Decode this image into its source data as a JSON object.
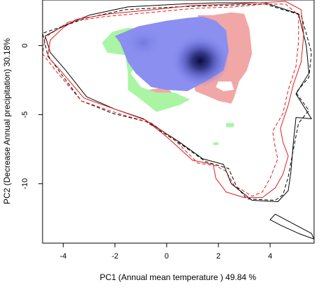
{
  "chart_data": {
    "type": "niche-overlap-contour",
    "title": "",
    "xlabel": "PC1 (Annual mean temperature ) 49.84 %",
    "ylabel": "PC2 (Decrease Annual precipitation) 30.18%",
    "xlim": [
      -4.8,
      5.7
    ],
    "ylim": [
      -14.3,
      3.3
    ],
    "x_ticks": [
      -4,
      -2,
      0,
      2,
      4
    ],
    "y_ticks": [
      0,
      -5,
      -10
    ],
    "x_tick_labels": [
      "-4",
      "-2",
      "0",
      "2",
      "4"
    ],
    "y_tick_labels": [
      "0",
      "-5",
      "-10"
    ],
    "colors": {
      "overlap_blue": "#8a8ff0",
      "species1_only_green": "#a9f5a3",
      "species2_only_red": "#f2a7a7",
      "density_peak": "#0b0b3a",
      "contour_species1": "#000000",
      "contour_species2": "#e31a1c"
    },
    "density_peak": [
      1.3,
      -1.1
    ],
    "series": [
      {
        "name": "",
        "role": "species1 environment contour (solid)",
        "color": "#000000",
        "dash": "solid",
        "points": [
          [
            -3.0,
            2.2
          ],
          [
            -1.5,
            2.8
          ],
          [
            0.5,
            3.0
          ],
          [
            2.0,
            3.1
          ],
          [
            3.8,
            3.1
          ],
          [
            5.1,
            2.3
          ],
          [
            5.4,
            0.0
          ],
          [
            5.5,
            -2.0
          ],
          [
            5.0,
            -3.5
          ],
          [
            5.6,
            -5.3
          ],
          [
            5.0,
            -5.2
          ],
          [
            4.9,
            -7.0
          ],
          [
            4.8,
            -9.2
          ],
          [
            4.7,
            -10.5
          ],
          [
            4.3,
            -11.3
          ],
          [
            3.3,
            -11.2
          ],
          [
            2.5,
            -10.0
          ],
          [
            2.2,
            -8.6
          ],
          [
            1.4,
            -8.2
          ],
          [
            0.5,
            -7.0
          ],
          [
            -0.9,
            -5.3
          ],
          [
            -2.0,
            -4.6
          ],
          [
            -3.1,
            -3.7
          ],
          [
            -3.9,
            -1.8
          ],
          [
            -4.5,
            -0.5
          ],
          [
            -4.7,
            0.7
          ],
          [
            -3.9,
            1.5
          ],
          [
            -3.0,
            2.2
          ]
        ]
      },
      {
        "name": "",
        "role": "species1 environment contour (dashed)",
        "color": "#000000",
        "dash": "dashed",
        "points": [
          [
            -3.1,
            2.0
          ],
          [
            -1.6,
            2.6
          ],
          [
            0.4,
            2.8
          ],
          [
            2.0,
            2.9
          ],
          [
            3.8,
            3.0
          ],
          [
            5.2,
            2.2
          ],
          [
            5.6,
            -0.5
          ],
          [
            5.5,
            -2.3
          ],
          [
            5.0,
            -3.4
          ],
          [
            5.5,
            -4.7
          ],
          [
            5.1,
            -5.6
          ],
          [
            4.9,
            -7.5
          ],
          [
            4.7,
            -9.5
          ],
          [
            4.5,
            -10.8
          ],
          [
            4.2,
            -11.2
          ],
          [
            3.1,
            -11.1
          ],
          [
            2.7,
            -10.2
          ],
          [
            2.4,
            -8.9
          ],
          [
            1.5,
            -8.4
          ],
          [
            0.6,
            -7.2
          ],
          [
            -0.8,
            -5.5
          ],
          [
            -2.1,
            -4.9
          ],
          [
            -3.3,
            -4.0
          ],
          [
            -4.1,
            -2.0
          ],
          [
            -4.6,
            -0.7
          ],
          [
            -4.8,
            0.9
          ],
          [
            -4.0,
            1.4
          ],
          [
            -3.1,
            2.0
          ]
        ]
      },
      {
        "name": "",
        "role": "species1 environment contour (solid, lower lobe)",
        "color": "#000000",
        "dash": "solid",
        "points": [
          [
            4.2,
            -12.2
          ],
          [
            4.8,
            -12.8
          ],
          [
            5.6,
            -13.6
          ],
          [
            5.7,
            -14.0
          ],
          [
            5.1,
            -13.6
          ],
          [
            4.4,
            -13.0
          ],
          [
            4.0,
            -12.6
          ],
          [
            4.2,
            -12.2
          ]
        ]
      },
      {
        "name": "",
        "role": "species2 environment contour (solid)",
        "color": "#e31a1c",
        "dash": "solid",
        "points": [
          [
            -3.5,
            1.9
          ],
          [
            -2.2,
            2.3
          ],
          [
            -0.5,
            2.6
          ],
          [
            1.0,
            2.9
          ],
          [
            2.5,
            3.0
          ],
          [
            3.6,
            3.1
          ],
          [
            4.6,
            3.2
          ],
          [
            5.2,
            2.6
          ],
          [
            5.3,
            0.8
          ],
          [
            5.2,
            -1.2
          ],
          [
            4.9,
            -2.8
          ],
          [
            4.7,
            -4.3
          ],
          [
            4.4,
            -6.0
          ],
          [
            4.5,
            -7.0
          ],
          [
            4.7,
            -8.0
          ],
          [
            4.5,
            -9.3
          ],
          [
            4.2,
            -10.3
          ],
          [
            3.7,
            -11.0
          ],
          [
            3.0,
            -11.0
          ],
          [
            2.3,
            -10.6
          ],
          [
            1.9,
            -9.6
          ],
          [
            1.8,
            -8.6
          ],
          [
            1.0,
            -8.3
          ],
          [
            0.0,
            -6.6
          ],
          [
            -0.8,
            -5.4
          ],
          [
            -2.0,
            -4.6
          ],
          [
            -3.2,
            -3.8
          ],
          [
            -4.2,
            -1.6
          ],
          [
            -4.6,
            -0.8
          ],
          [
            -4.5,
            0.4
          ],
          [
            -4.0,
            1.3
          ],
          [
            -3.5,
            1.9
          ]
        ]
      },
      {
        "name": "",
        "role": "species2 environment contour (dashed)",
        "color": "#e31a1c",
        "dash": "dashed",
        "points": [
          [
            -3.8,
            1.7
          ],
          [
            -2.4,
            2.1
          ],
          [
            -0.6,
            2.4
          ],
          [
            1.1,
            2.7
          ],
          [
            2.6,
            2.8
          ],
          [
            3.8,
            3.0
          ],
          [
            4.6,
            3.0
          ],
          [
            5.1,
            2.2
          ],
          [
            5.1,
            0.3
          ],
          [
            5.0,
            -1.5
          ],
          [
            4.7,
            -3.2
          ],
          [
            4.5,
            -4.9
          ],
          [
            4.1,
            -6.2
          ],
          [
            4.2,
            -7.4
          ],
          [
            4.3,
            -8.2
          ],
          [
            4.0,
            -9.6
          ],
          [
            3.7,
            -10.6
          ],
          [
            3.3,
            -10.9
          ],
          [
            2.6,
            -10.1
          ],
          [
            2.3,
            -9.1
          ],
          [
            1.9,
            -8.7
          ],
          [
            1.2,
            -8.5
          ],
          [
            0.3,
            -6.8
          ],
          [
            -0.6,
            -5.6
          ],
          [
            -1.9,
            -4.9
          ],
          [
            -3.3,
            -4.0
          ],
          [
            -4.3,
            -1.8
          ],
          [
            -4.8,
            -0.6
          ],
          [
            -4.7,
            0.6
          ],
          [
            -4.2,
            1.2
          ],
          [
            -3.8,
            1.7
          ]
        ]
      }
    ],
    "regions": [
      {
        "role": "species2-only (red)",
        "color": "#f2a7a7",
        "points": [
          [
            1.2,
            2.2
          ],
          [
            1.8,
            2.2
          ],
          [
            2.5,
            2.4
          ],
          [
            3.0,
            2.3
          ],
          [
            3.2,
            1.2
          ],
          [
            3.3,
            -0.6
          ],
          [
            3.1,
            -1.8
          ],
          [
            2.8,
            -2.6
          ],
          [
            2.6,
            -3.8
          ],
          [
            2.5,
            -4.2
          ],
          [
            2.0,
            -4.0
          ],
          [
            1.5,
            -3.6
          ],
          [
            1.1,
            -3.3
          ],
          [
            1.0,
            -2.0
          ],
          [
            1.3,
            -0.2
          ],
          [
            1.2,
            2.2
          ]
        ]
      },
      {
        "role": "species2-only (red, lower left)",
        "color": "#f2a7a7",
        "points": [
          [
            -0.7,
            -3.2
          ],
          [
            0.0,
            -3.0
          ],
          [
            0.3,
            -3.6
          ],
          [
            0.0,
            -4.2
          ],
          [
            -0.6,
            -4.3
          ],
          [
            -0.7,
            -3.2
          ]
        ]
      },
      {
        "role": "species1-only (green)",
        "color": "#a9f5a3",
        "points": [
          [
            -2.5,
            0.2
          ],
          [
            -2.1,
            1.0
          ],
          [
            -1.5,
            1.3
          ],
          [
            -1.0,
            1.2
          ],
          [
            -0.4,
            1.4
          ],
          [
            -0.1,
            0.3
          ],
          [
            -0.8,
            -0.6
          ],
          [
            -1.4,
            -2.0
          ],
          [
            -1.0,
            -3.0
          ],
          [
            -0.4,
            -3.4
          ],
          [
            0.3,
            -3.4
          ],
          [
            0.9,
            -3.9
          ],
          [
            0.5,
            -4.3
          ],
          [
            -0.4,
            -4.8
          ],
          [
            -1.0,
            -3.9
          ],
          [
            -1.5,
            -3.2
          ],
          [
            -1.5,
            -2.0
          ],
          [
            -1.6,
            -0.7
          ],
          [
            -2.3,
            -0.5
          ],
          [
            -2.5,
            0.2
          ]
        ]
      },
      {
        "role": "species1-only (green, speck)",
        "color": "#a9f5a3",
        "points": [
          [
            2.3,
            -5.6
          ],
          [
            2.6,
            -5.6
          ],
          [
            2.6,
            -5.9
          ],
          [
            2.3,
            -5.9
          ],
          [
            2.3,
            -5.6
          ]
        ]
      },
      {
        "role": "species1-only (green, speck 2)",
        "color": "#a9f5a3",
        "points": [
          [
            1.8,
            -7.0
          ],
          [
            2.0,
            -7.0
          ],
          [
            2.0,
            -7.2
          ],
          [
            1.8,
            -7.2
          ],
          [
            1.8,
            -7.0
          ]
        ]
      },
      {
        "role": "overlap (blue)",
        "color": "#8a8ff0",
        "points": [
          [
            -2.0,
            0.7
          ],
          [
            -1.1,
            1.4
          ],
          [
            0.0,
            1.8
          ],
          [
            0.8,
            2.0
          ],
          [
            1.4,
            2.1
          ],
          [
            1.9,
            1.8
          ],
          [
            2.3,
            1.1
          ],
          [
            2.4,
            -0.4
          ],
          [
            2.2,
            -1.8
          ],
          [
            1.5,
            -2.6
          ],
          [
            0.8,
            -3.3
          ],
          [
            0.0,
            -3.2
          ],
          [
            -0.6,
            -3.0
          ],
          [
            -1.2,
            -2.0
          ],
          [
            -1.5,
            -1.2
          ],
          [
            -1.8,
            0.2
          ],
          [
            -2.0,
            0.7
          ]
        ]
      },
      {
        "role": "white hole",
        "color": "#ffffff",
        "points": [
          [
            2.0,
            -2.6
          ],
          [
            2.5,
            -2.6
          ],
          [
            2.6,
            -3.2
          ],
          [
            2.2,
            -3.3
          ],
          [
            1.9,
            -3.0
          ],
          [
            2.0,
            -2.6
          ]
        ]
      }
    ]
  }
}
